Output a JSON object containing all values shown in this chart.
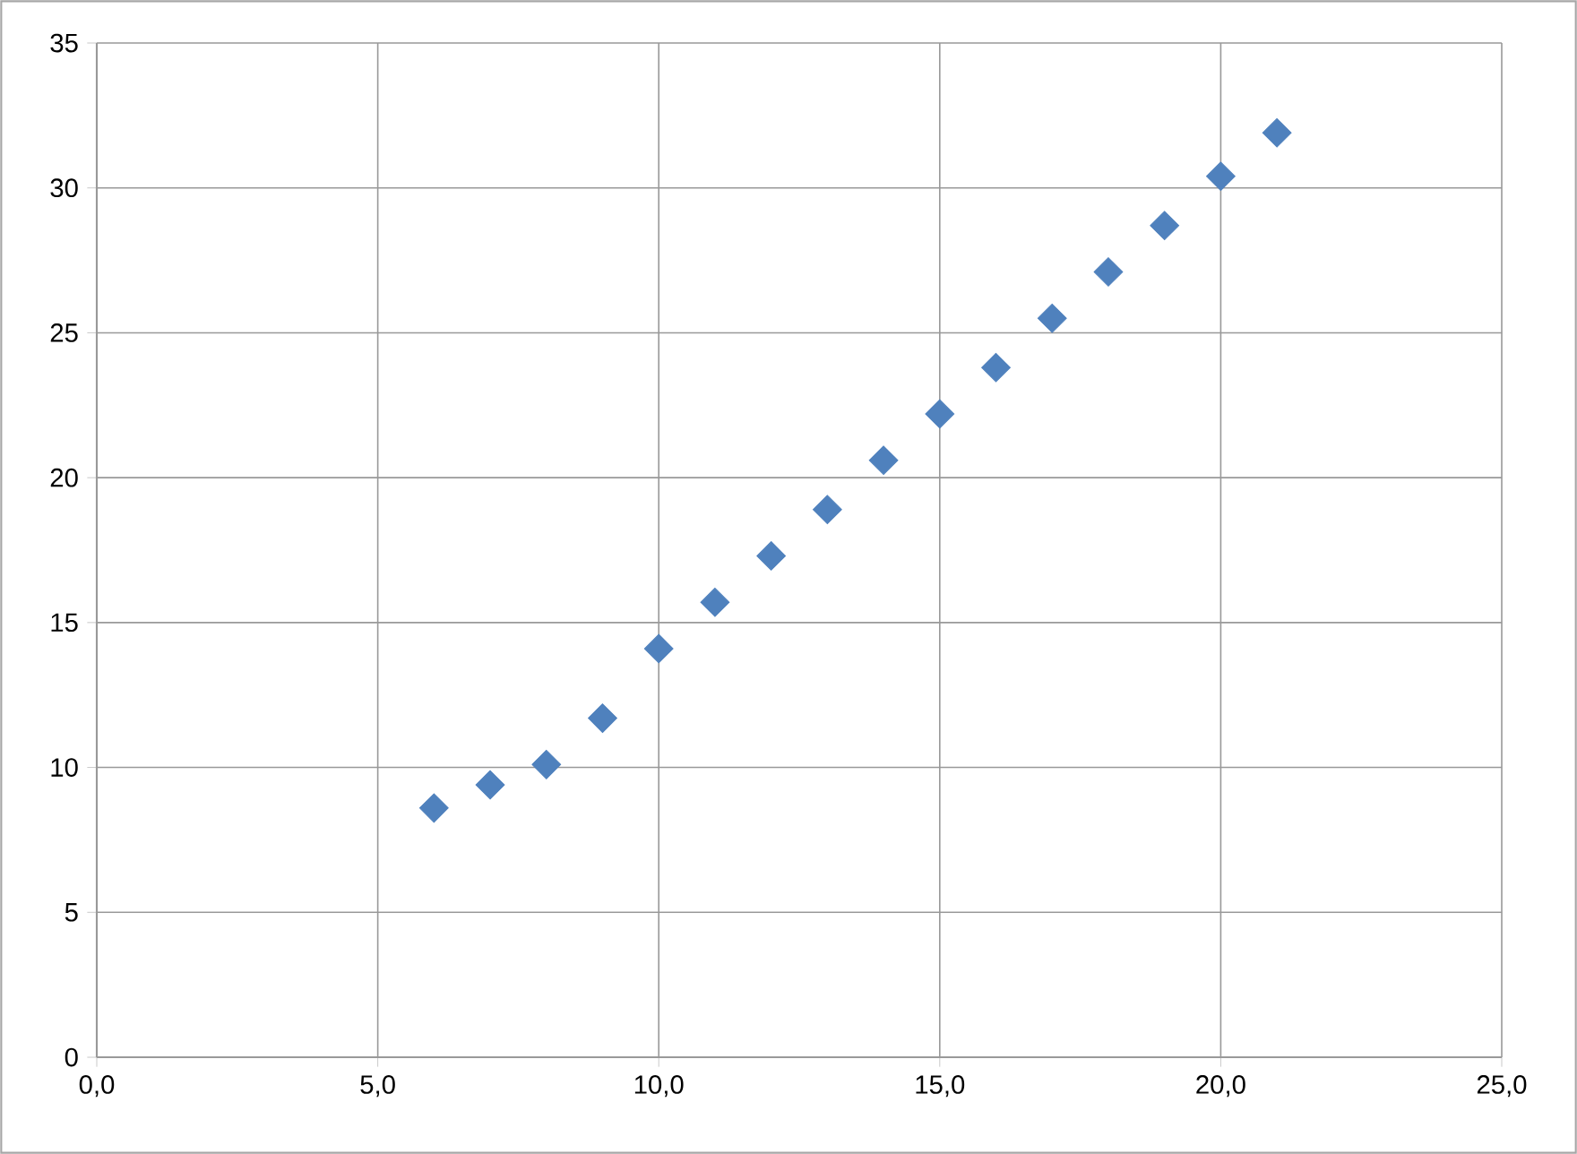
{
  "chart_data": {
    "type": "scatter",
    "marker": "diamond",
    "grid": true,
    "x": [
      6,
      7,
      8,
      9,
      10,
      11,
      12,
      13,
      14,
      15,
      16,
      17,
      18,
      19,
      20,
      21
    ],
    "values": [
      8.6,
      9.4,
      10.1,
      11.7,
      14.1,
      15.7,
      17.3,
      18.9,
      20.6,
      22.2,
      23.8,
      25.5,
      27.1,
      28.7,
      30.4,
      31.9
    ],
    "color": "#4f81bd",
    "xlim": [
      0,
      25
    ],
    "ylim": [
      0,
      35
    ],
    "xticks": [
      {
        "value": 0,
        "label": "0,0"
      },
      {
        "value": 5,
        "label": "5,0"
      },
      {
        "value": 10,
        "label": "10,0"
      },
      {
        "value": 15,
        "label": "15,0"
      },
      {
        "value": 20,
        "label": "20,0"
      },
      {
        "value": 25,
        "label": "25,0"
      }
    ],
    "yticks": [
      0,
      5,
      10,
      15,
      20,
      25,
      30,
      35
    ]
  }
}
